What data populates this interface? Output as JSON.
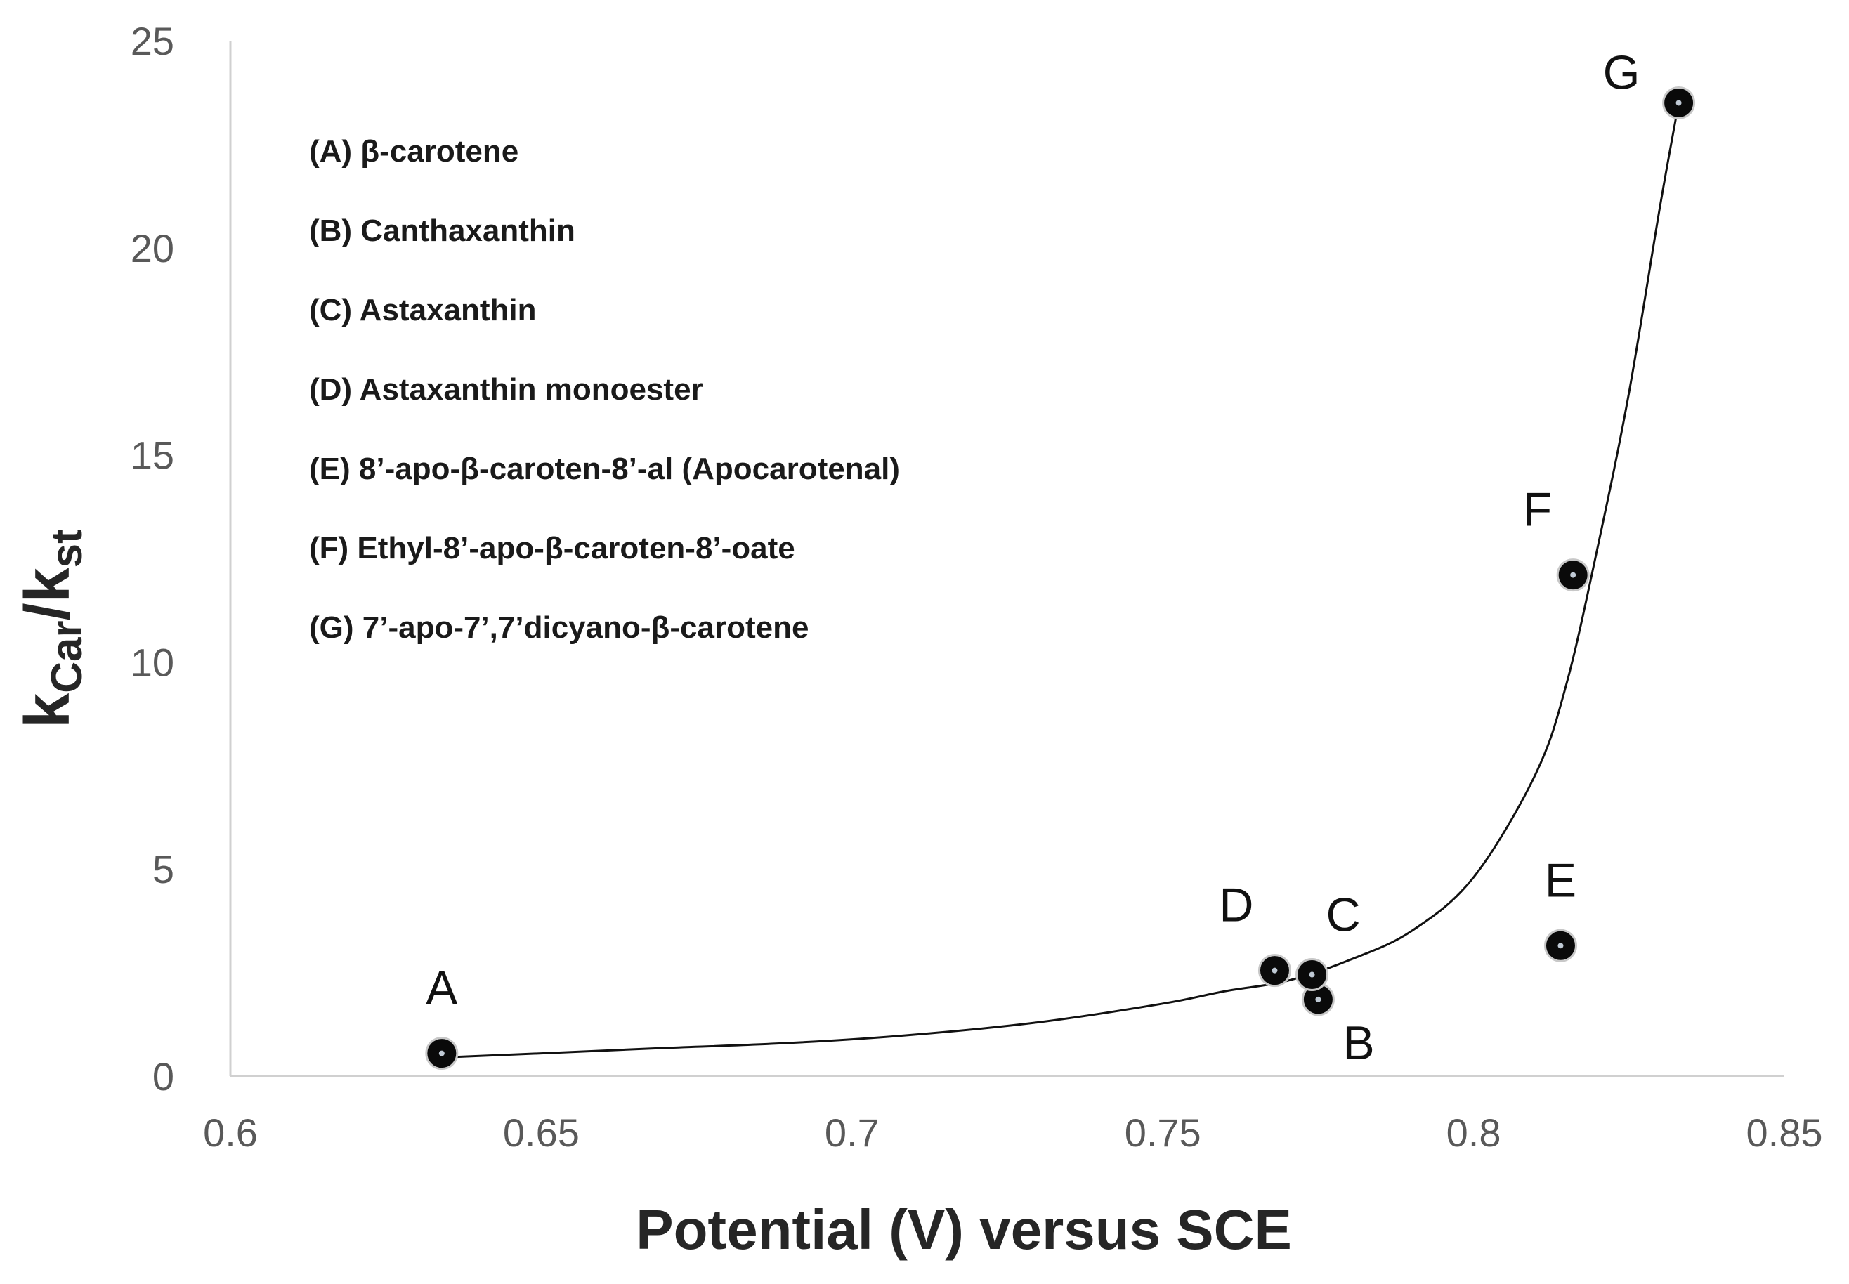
{
  "chart_data": {
    "type": "scatter",
    "title": "",
    "xlabel": "Potential (V) versus SCE",
    "ylabel": {
      "main": "k",
      "sub1": "Car",
      "slash": "/k",
      "sub2": "st"
    },
    "xlim": [
      0.6,
      0.85
    ],
    "ylim": [
      0,
      25
    ],
    "x_ticks": [
      0.6,
      0.65,
      0.7,
      0.75,
      0.8,
      0.85
    ],
    "x_tick_labels": [
      "0.6",
      "0.65",
      "0.7",
      "0.75",
      "0.8",
      "0.85"
    ],
    "y_ticks": [
      0,
      5,
      10,
      15,
      20,
      25
    ],
    "y_tick_labels": [
      "0",
      "5",
      "10",
      "15",
      "20",
      "25"
    ],
    "grid": false,
    "points": [
      {
        "label": "A",
        "x": 0.634,
        "y": 0.55,
        "label_side": "above"
      },
      {
        "label": "B",
        "x": 0.775,
        "y": 1.85,
        "label_side": "below-right"
      },
      {
        "label": "C",
        "x": 0.774,
        "y": 2.45,
        "label_side": "above-right"
      },
      {
        "label": "D",
        "x": 0.768,
        "y": 2.55,
        "label_side": "above-left"
      },
      {
        "label": "E",
        "x": 0.814,
        "y": 3.15,
        "label_side": "above"
      },
      {
        "label": "F",
        "x": 0.816,
        "y": 12.1,
        "label_side": "above-left"
      },
      {
        "label": "G",
        "x": 0.833,
        "y": 23.5,
        "label_side": "left"
      }
    ],
    "trendline": {
      "type": "curve",
      "points": [
        [
          0.634,
          0.45
        ],
        [
          0.65,
          0.55
        ],
        [
          0.67,
          0.68
        ],
        [
          0.69,
          0.8
        ],
        [
          0.71,
          1.0
        ],
        [
          0.73,
          1.3
        ],
        [
          0.75,
          1.75
        ],
        [
          0.76,
          2.05
        ],
        [
          0.77,
          2.3
        ],
        [
          0.78,
          2.8
        ],
        [
          0.79,
          3.5
        ],
        [
          0.8,
          4.8
        ],
        [
          0.81,
          7.3
        ],
        [
          0.815,
          9.5
        ],
        [
          0.82,
          12.8
        ],
        [
          0.825,
          16.5
        ],
        [
          0.83,
          21.0
        ],
        [
          0.833,
          23.5
        ]
      ]
    },
    "legend": {
      "placement": "upper-left",
      "entries": [
        "(A) β-carotene",
        "(B) Canthaxanthin",
        "(C) Astaxanthin",
        "(D) Astaxanthin monoester",
        "(E) 8’-apo-β-caroten-8’-al (Apocarotenal)",
        "(F) Ethyl-8’-apo-β-caroten-8’-oate",
        "(G) 7’-apo-7’,7’dicyano-β-carotene"
      ]
    }
  }
}
